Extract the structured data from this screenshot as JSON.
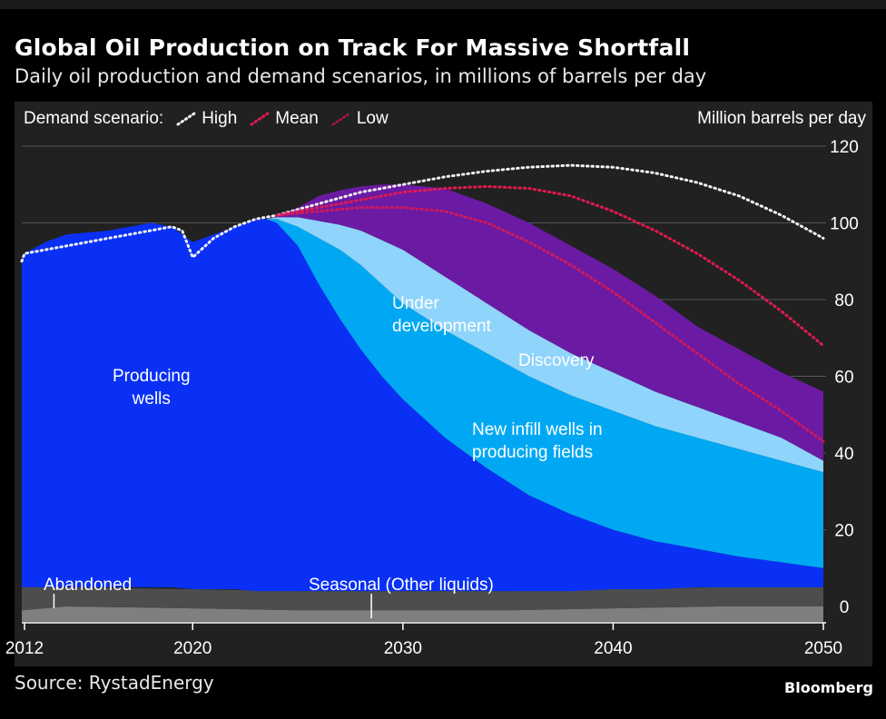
{
  "header": {
    "title": "Global Oil Production on Track For Massive Shortfall",
    "subtitle": "Daily oil production and demand scenarios, in millions of barrels per day"
  },
  "footer": {
    "source": "Source: RystadEnergy",
    "brand": "Bloomberg"
  },
  "legend": {
    "prefix": "Demand scenario:",
    "items": [
      {
        "label": "High",
        "color": "#f2f2f2"
      },
      {
        "label": "Mean",
        "color": "#e01a4f"
      },
      {
        "label": "Low",
        "color": "#e01a4f"
      }
    ]
  },
  "chart_data": {
    "type": "area",
    "title": "Global Oil Production on Track For Massive Shortfall",
    "subtitle": "Daily oil production and demand scenarios, in millions of barrels per day",
    "ylabel": "Million barrels per day",
    "xlim": [
      2010.5,
      2052
    ],
    "ylim": [
      -4,
      124
    ],
    "x_ticks": [
      2012,
      2020,
      2030,
      2040,
      2050
    ],
    "y_ticks": [
      0,
      20,
      40,
      60,
      80,
      100,
      120
    ],
    "grid": "horizontal",
    "legend_position": "top-left",
    "stack_order": [
      "Abandoned",
      "Seasonal (Other liquids)",
      "Producing wells",
      "New infill wells in producing fields",
      "Under development",
      "Discovery"
    ],
    "area_series": [
      {
        "name": "Abandoned",
        "color": "#7f7f7f",
        "x": [
          2010.5,
          2014,
          2020,
          2025,
          2030,
          2035,
          2040,
          2045,
          2050
        ],
        "upper": [
          -1,
          0,
          -0.5,
          -1,
          -1,
          -1,
          -0.5,
          0,
          0
        ],
        "lower": [
          -4,
          -4,
          -4,
          -4,
          -4,
          -4,
          -4,
          -4,
          -4
        ]
      },
      {
        "name": "Seasonal (Other liquids)",
        "color": "#4d4d4d",
        "x": [
          2010.5,
          2014,
          2020,
          2025,
          2030,
          2035,
          2040,
          2045,
          2050
        ],
        "upper": [
          5,
          5,
          4.5,
          4,
          4,
          4,
          4.5,
          5,
          5
        ],
        "lower": [
          -1,
          0,
          -0.5,
          -1,
          -1,
          -1,
          -0.5,
          0,
          0
        ]
      },
      {
        "name": "Producing wells",
        "color": "#0a30f5",
        "x": [
          2010.5,
          2012,
          2013,
          2014,
          2015,
          2016,
          2017,
          2018,
          2019,
          2020,
          2021,
          2022,
          2023,
          2023.5,
          2024,
          2025,
          2026,
          2027,
          2028,
          2029,
          2030,
          2032,
          2034,
          2036,
          2038,
          2040,
          2042,
          2044,
          2046,
          2048,
          2050
        ],
        "upper": [
          91,
          92,
          95,
          97,
          97.5,
          98,
          99,
          100,
          99,
          95,
          97,
          99,
          101,
          101,
          100,
          94,
          84,
          75,
          67,
          60,
          54,
          44,
          36,
          29,
          24,
          20,
          17,
          15,
          13,
          11.5,
          10
        ],
        "lower": [
          5,
          5,
          5,
          5,
          5,
          5,
          5,
          5,
          5,
          4.5,
          4.5,
          4.5,
          4,
          4,
          4,
          4,
          4,
          4,
          4,
          4,
          4,
          4,
          4,
          4,
          4,
          4.5,
          4.5,
          5,
          5,
          5,
          5
        ]
      },
      {
        "name": "New infill wells in producing fields",
        "color": "#00a8f3",
        "x": [
          2023.5,
          2024,
          2025,
          2026,
          2027,
          2028,
          2029,
          2030,
          2032,
          2034,
          2036,
          2038,
          2040,
          2042,
          2044,
          2046,
          2048,
          2050
        ],
        "upper": [
          101,
          101,
          99,
          96,
          93,
          89,
          84,
          79,
          72,
          66,
          60,
          55,
          51,
          47,
          44,
          41,
          38,
          35
        ],
        "lower": [
          101,
          100,
          94,
          84,
          75,
          67,
          60,
          54,
          44,
          36,
          29,
          24,
          20,
          17,
          15,
          13,
          11.5,
          10
        ]
      },
      {
        "name": "Under development",
        "color": "#8fd4fb",
        "x": [
          2023.5,
          2024,
          2025,
          2026,
          2027,
          2028,
          2029,
          2030,
          2032,
          2034,
          2036,
          2038,
          2040,
          2042,
          2044,
          2046,
          2048,
          2050
        ],
        "upper": [
          101,
          101.5,
          101.5,
          100.5,
          99.5,
          98,
          95.5,
          93,
          86,
          79,
          72,
          66,
          61,
          56,
          52,
          48,
          44,
          38
        ],
        "lower": [
          101,
          101,
          99,
          96,
          93,
          89,
          84,
          79,
          72,
          66,
          60,
          55,
          51,
          47,
          44,
          41,
          38,
          35
        ]
      },
      {
        "name": "Discovery",
        "color": "#6b1aa3",
        "x": [
          2023.5,
          2024,
          2025,
          2026,
          2027,
          2028,
          2029,
          2030,
          2031,
          2032,
          2034,
          2036,
          2038,
          2040,
          2042,
          2044,
          2046,
          2048,
          2050
        ],
        "upper": [
          101,
          102,
          104,
          107,
          108.5,
          109.5,
          110,
          110,
          109.5,
          109,
          105,
          100,
          94,
          88,
          81,
          73,
          67,
          61,
          56
        ],
        "lower": [
          101,
          101.5,
          101.5,
          100.5,
          99.5,
          98,
          95.5,
          93,
          89.5,
          86,
          79,
          72,
          66,
          61,
          56,
          52,
          48,
          44,
          38
        ]
      }
    ],
    "line_series": [
      {
        "name": "High",
        "color": "#f2f2f2",
        "x": [
          2010.5,
          2012,
          2014,
          2016,
          2018,
          2019,
          2019.5,
          2020,
          2021,
          2022,
          2023,
          2024,
          2026,
          2028,
          2030,
          2032,
          2034,
          2036,
          2038,
          2040,
          2042,
          2044,
          2046,
          2048,
          2050
        ],
        "y": [
          90,
          92,
          94,
          96,
          98,
          99,
          98,
          91,
          96,
          99,
          101,
          102,
          105,
          108,
          110,
          112,
          113.5,
          114.5,
          115,
          114.5,
          113,
          110.5,
          107,
          102,
          96
        ]
      },
      {
        "name": "Mean",
        "color": "#e01a4f",
        "x": [
          2024,
          2026,
          2028,
          2030,
          2032,
          2034,
          2036,
          2038,
          2040,
          2042,
          2044,
          2046,
          2048,
          2050
        ],
        "y": [
          102,
          104,
          106,
          108,
          109,
          109.5,
          109,
          107,
          103,
          98,
          92,
          85,
          77,
          68
        ]
      },
      {
        "name": "Low",
        "color": "#e01a4f",
        "x": [
          2024,
          2026,
          2028,
          2030,
          2032,
          2034,
          2036,
          2038,
          2040,
          2042,
          2044,
          2046,
          2048,
          2050
        ],
        "y": [
          102,
          103,
          104,
          104,
          103,
          100,
          95,
          89,
          82,
          74,
          66,
          58,
          51,
          43
        ]
      }
    ],
    "annotations": [
      {
        "text": "Producing\nwells",
        "x": 2016.2,
        "y": 63
      },
      {
        "text": "Under\ndevelopment",
        "x": 2029.5,
        "y": 82
      },
      {
        "text": "Discovery",
        "x": 2035.5,
        "y": 67
      },
      {
        "text": "New infill wells in\nproducing fields",
        "x": 2033.3,
        "y": 49
      },
      {
        "text": "Abandoned",
        "x": 2012.9,
        "y": 8.5
      },
      {
        "text": "Seasonal (Other liquids)",
        "x": 2025.5,
        "y": 8.5
      }
    ],
    "callout_ticks": [
      {
        "x": 2013.4
      },
      {
        "x": 2028.5
      }
    ]
  }
}
